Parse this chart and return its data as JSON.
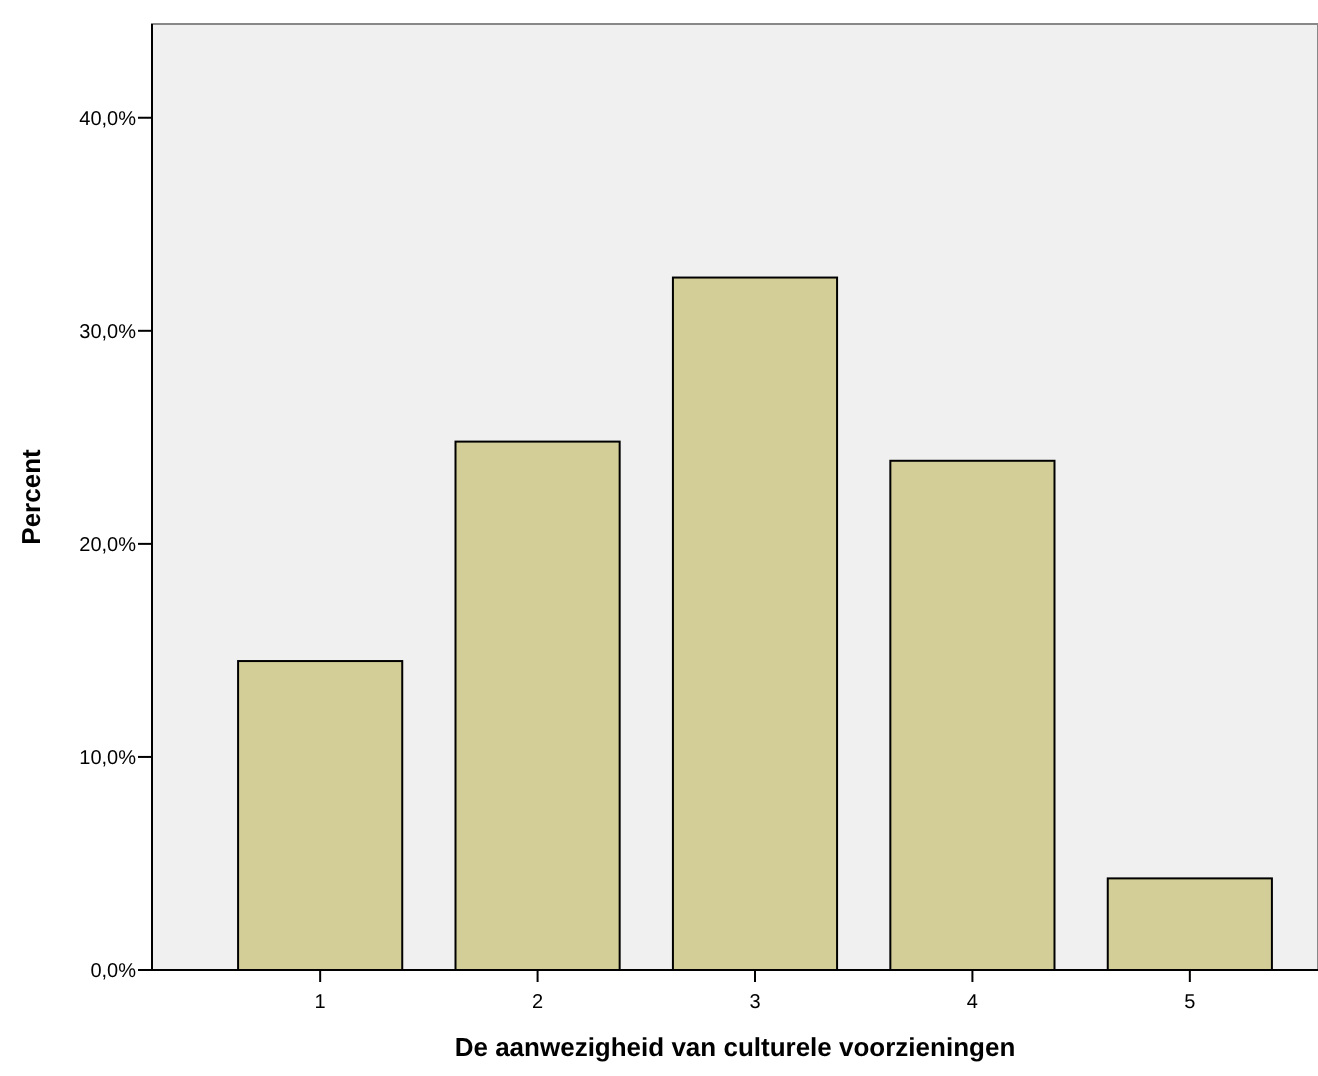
{
  "chart_data": {
    "type": "bar",
    "xlabel": "De aanwezigheid van culturele voorzieningen",
    "ylabel": "Percent",
    "categories": [
      "1",
      "2",
      "3",
      "4",
      "5"
    ],
    "values": [
      14.5,
      24.8,
      32.5,
      23.9,
      4.3
    ],
    "color": "#d3ce97",
    "ylim": [
      0,
      44.4
    ],
    "yticks": [
      {
        "value": 0,
        "label": "0,0%"
      },
      {
        "value": 10,
        "label": "10,0%"
      },
      {
        "value": 20,
        "label": "20,0%"
      },
      {
        "value": 30,
        "label": "30,0%"
      },
      {
        "value": 40,
        "label": "40,0%"
      }
    ],
    "grid": false
  }
}
